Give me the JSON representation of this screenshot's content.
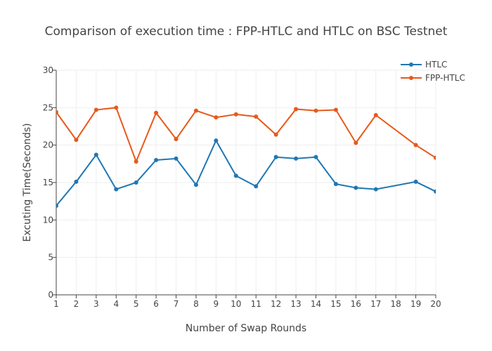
{
  "chart_data": {
    "type": "line",
    "title": "Comparison of execution time : FPP-HTLC and HTLC on BSC Testnet",
    "xlabel": "Number of Swap Rounds",
    "ylabel": "Excuting Time(Seconds)",
    "xlim": [
      1,
      20
    ],
    "ylim": [
      0,
      30
    ],
    "xticks": [
      1,
      2,
      3,
      4,
      5,
      6,
      7,
      8,
      9,
      10,
      11,
      12,
      13,
      14,
      15,
      16,
      17,
      18,
      19,
      20
    ],
    "yticks": [
      0,
      5,
      10,
      15,
      20,
      25,
      30
    ],
    "grid": true,
    "legend_position": "top-right",
    "series": [
      {
        "name": "HTLC",
        "color": "#1f77b4",
        "x": [
          1,
          2,
          3,
          4,
          5,
          6,
          7,
          8,
          9,
          10,
          11,
          12,
          13,
          14,
          15,
          16,
          17,
          19,
          20
        ],
        "y": [
          11.9,
          15.1,
          18.7,
          14.1,
          15.0,
          18.0,
          18.2,
          14.7,
          20.6,
          15.9,
          14.5,
          18.4,
          18.2,
          18.4,
          14.8,
          14.3,
          14.1,
          15.1,
          13.8
        ]
      },
      {
        "name": "FPP-HTLC",
        "color": "#e8591a",
        "x": [
          1,
          2,
          3,
          4,
          5,
          6,
          7,
          8,
          9,
          10,
          11,
          12,
          13,
          14,
          15,
          16,
          17,
          19,
          20
        ],
        "y": [
          24.4,
          20.7,
          24.7,
          25.0,
          17.8,
          24.3,
          20.8,
          24.6,
          23.7,
          24.1,
          23.8,
          21.4,
          24.8,
          24.6,
          24.7,
          20.3,
          24.0,
          20.0,
          18.3
        ]
      }
    ]
  }
}
